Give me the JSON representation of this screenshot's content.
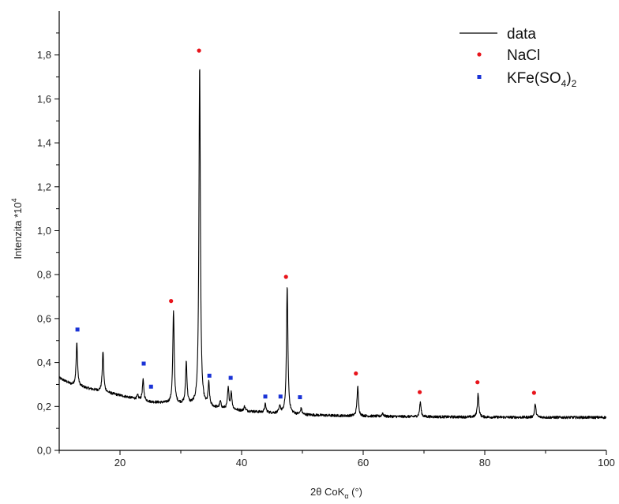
{
  "chart_data": {
    "type": "line",
    "xlabel": "2θ CoK",
    "xlabel_sub": "α",
    "xlabel_unit": " (°)",
    "ylabel": "Intenzita *10",
    "ylabel_sup": "4",
    "xlim": [
      10,
      100
    ],
    "ylim": [
      0,
      2.0
    ],
    "x_ticks": [
      20,
      40,
      60,
      80,
      100
    ],
    "x_tick_labels": [
      "20",
      "40",
      "60",
      "80",
      "100"
    ],
    "y_ticks": [
      0.0,
      0.2,
      0.4,
      0.6,
      0.8,
      1.0,
      1.2,
      1.4,
      1.6,
      1.8
    ],
    "y_tick_labels": [
      "0,0",
      "0,2",
      "0,4",
      "0,6",
      "0,8",
      "1,0",
      "1,2",
      "1,4",
      "1,6",
      "1,8"
    ],
    "grid": false,
    "legend_position": "top-right",
    "series": [
      {
        "name": "data",
        "style": "line",
        "color": "#000000",
        "baseline": [
          [
            10,
            0.33
          ],
          [
            12,
            0.3
          ],
          [
            15,
            0.28
          ],
          [
            20,
            0.25
          ],
          [
            25,
            0.22
          ],
          [
            30,
            0.21
          ],
          [
            35,
            0.195
          ],
          [
            40,
            0.18
          ],
          [
            45,
            0.17
          ],
          [
            50,
            0.162
          ],
          [
            55,
            0.158
          ],
          [
            60,
            0.156
          ],
          [
            65,
            0.154
          ],
          [
            70,
            0.153
          ],
          [
            80,
            0.151
          ],
          [
            90,
            0.15
          ],
          [
            100,
            0.15
          ]
        ],
        "peaks": [
          {
            "x": 12.9,
            "y": 0.49
          },
          {
            "x": 17.2,
            "y": 0.45
          },
          {
            "x": 22.9,
            "y": 0.25
          },
          {
            "x": 23.8,
            "y": 0.32
          },
          {
            "x": 25.1,
            "y": 0.22
          },
          {
            "x": 28.8,
            "y": 0.63
          },
          {
            "x": 30.9,
            "y": 0.4
          },
          {
            "x": 33.1,
            "y": 1.76
          },
          {
            "x": 34.6,
            "y": 0.3
          },
          {
            "x": 36.5,
            "y": 0.22
          },
          {
            "x": 37.8,
            "y": 0.28
          },
          {
            "x": 38.3,
            "y": 0.26
          },
          {
            "x": 40.5,
            "y": 0.2
          },
          {
            "x": 43.9,
            "y": 0.21
          },
          {
            "x": 46.3,
            "y": 0.2
          },
          {
            "x": 47.5,
            "y": 0.75
          },
          {
            "x": 49.8,
            "y": 0.19
          },
          {
            "x": 59.1,
            "y": 0.29
          },
          {
            "x": 63.2,
            "y": 0.17
          },
          {
            "x": 69.4,
            "y": 0.22
          },
          {
            "x": 78.9,
            "y": 0.26
          },
          {
            "x": 88.3,
            "y": 0.21
          }
        ]
      },
      {
        "name": "NaCl",
        "style": "marker",
        "marker": "circle",
        "color": "#e8141b",
        "x": [
          28.4,
          33.0,
          47.3,
          58.8,
          69.3,
          78.8,
          88.1
        ],
        "y": [
          0.68,
          1.82,
          0.79,
          0.35,
          0.265,
          0.31,
          0.262
        ]
      },
      {
        "name": "KFe(SO",
        "name_sub1": "4",
        "name_mid": ")",
        "name_sub2": "2",
        "style": "marker",
        "marker": "square",
        "color": "#1a33d6",
        "x": [
          13.0,
          23.9,
          25.1,
          34.7,
          38.2,
          43.9,
          46.4,
          49.6
        ],
        "y": [
          0.55,
          0.395,
          0.29,
          0.34,
          0.33,
          0.245,
          0.245,
          0.242
        ]
      }
    ]
  }
}
